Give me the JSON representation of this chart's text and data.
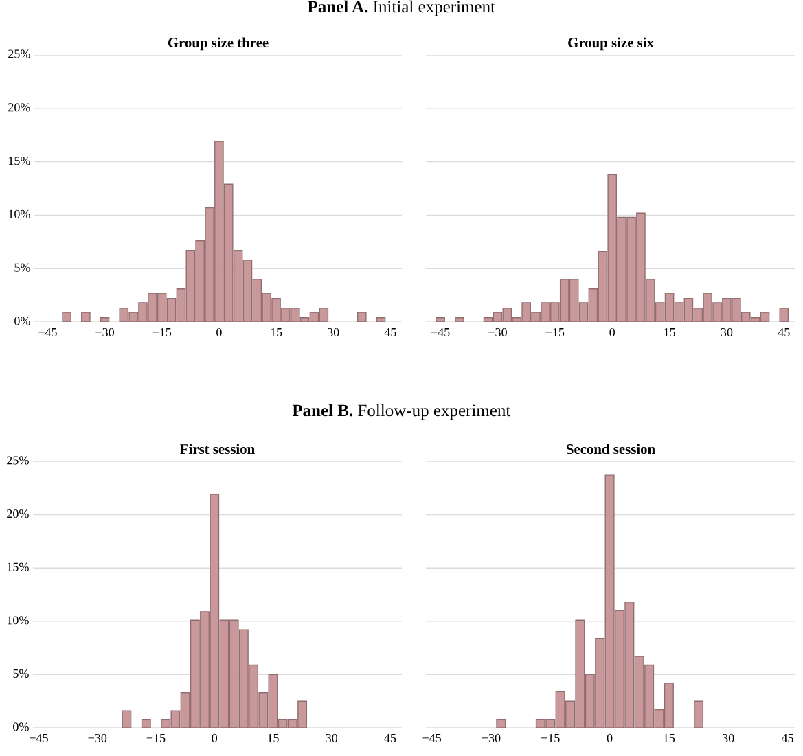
{
  "chart_data": [
    {
      "type": "histogram",
      "title": "Group size three",
      "annotations": [
        "Panel A. Initial experiment"
      ],
      "color": "#c9989b",
      "bins": [
        -41.25,
        -38.75,
        -36.25,
        -33.75,
        -31.25,
        -28.75,
        -26.25,
        -23.75,
        -21.25,
        -18.75,
        -16.25,
        -13.75,
        -11.25,
        -8.75,
        -6.25,
        -3.75,
        -1.25,
        1.25,
        3.75,
        6.25,
        8.75,
        11.25,
        13.75,
        16.25,
        18.75,
        21.25,
        23.75,
        26.25,
        28.75,
        31.25,
        33.75,
        36.25,
        38.75,
        41.25,
        43.75
      ],
      "values": [
        0.9,
        0,
        0.9,
        0,
        0.4,
        0,
        1.3,
        0.9,
        1.8,
        2.7,
        2.7,
        2.2,
        3.1,
        6.7,
        7.6,
        10.7,
        16.9,
        12.9,
        6.7,
        5.8,
        4.0,
        2.7,
        2.2,
        1.3,
        1.3,
        0.4,
        0.9,
        1.3,
        0,
        0,
        0,
        0.9,
        0,
        0.4
      ],
      "xlim": [
        -48.5,
        48
      ],
      "xticks": [
        {
          "value": -45,
          "label": "−45"
        },
        {
          "value": -30,
          "label": "−30"
        },
        {
          "value": -15,
          "label": "−15"
        },
        0,
        15,
        30,
        45
      ],
      "ylim": [
        0,
        25
      ],
      "yticks": [
        {
          "value": 0,
          "label": "0%"
        },
        {
          "value": 5,
          "label": "5%"
        },
        {
          "value": 10,
          "label": "10%"
        },
        {
          "value": 15,
          "label": "15%"
        },
        {
          "value": 20,
          "label": "20%"
        },
        {
          "value": 25,
          "label": "25%"
        }
      ],
      "grid": "y"
    },
    {
      "type": "histogram",
      "title": "Group size six",
      "color": "#c9989b",
      "bins": [
        -46.25,
        -43.75,
        -41.25,
        -38.75,
        -36.25,
        -33.75,
        -31.25,
        -28.75,
        -26.25,
        -23.75,
        -21.25,
        -18.75,
        -16.25,
        -13.75,
        -11.25,
        -8.75,
        -6.25,
        -3.75,
        -1.25,
        1.25,
        3.75,
        6.25,
        8.75,
        11.25,
        13.75,
        16.25,
        18.75,
        21.25,
        23.75,
        26.25,
        28.75,
        31.25,
        33.75,
        36.25,
        38.75,
        41.25,
        43.75,
        46.25
      ],
      "values": [
        0.4,
        0,
        0.4,
        0,
        0,
        0.4,
        0.9,
        1.3,
        0.4,
        1.8,
        0.9,
        1.8,
        1.8,
        4.0,
        4.0,
        1.8,
        3.1,
        6.6,
        13.8,
        9.8,
        9.8,
        10.2,
        4.0,
        1.8,
        2.7,
        1.8,
        2.2,
        1.3,
        2.7,
        1.8,
        2.2,
        2.2,
        0.9,
        0.4,
        0.9,
        0,
        1.3
      ],
      "xlim": [
        -48.8,
        48
      ],
      "xticks": [
        {
          "value": -45,
          "label": "−45"
        },
        {
          "value": -30,
          "label": "−30"
        },
        {
          "value": -15,
          "label": "−15"
        },
        0,
        15,
        30,
        45
      ],
      "ylim": [
        0,
        25
      ],
      "yticks": [
        {
          "value": 0,
          "label": null
        },
        {
          "value": 5,
          "label": null
        },
        {
          "value": 10,
          "label": null
        },
        {
          "value": 15,
          "label": null
        },
        {
          "value": 20,
          "label": null
        },
        {
          "value": 25,
          "label": null
        }
      ],
      "grid": "y",
      "tick_labels": "x"
    },
    {
      "type": "histogram",
      "title": "First session",
      "annotations": [
        "Panel B. Follow-up experiment"
      ],
      "color": "#c9989b",
      "bins": [
        -23.75,
        -21.25,
        -18.75,
        -16.25,
        -13.75,
        -11.25,
        -8.75,
        -6.25,
        -3.75,
        -1.25,
        1.25,
        3.75,
        6.25,
        8.75,
        11.25,
        13.75,
        16.25,
        18.75,
        21.25,
        23.75
      ],
      "values": [
        1.6,
        0,
        0.8,
        0,
        0.8,
        1.6,
        3.3,
        10.1,
        10.9,
        21.9,
        10.1,
        10.1,
        9.2,
        5.9,
        3.3,
        5.0,
        0.8,
        0.8,
        2.5
      ],
      "xlim": [
        -46.5,
        48
      ],
      "xticks": [
        {
          "value": -45,
          "label": "−45"
        },
        {
          "value": -30,
          "label": "−30"
        },
        {
          "value": -15,
          "label": "−15"
        },
        0,
        15,
        30,
        45
      ],
      "ylim": [
        0,
        25
      ],
      "yticks": [
        {
          "value": 0,
          "label": "0%"
        },
        {
          "value": 5,
          "label": "5%"
        },
        {
          "value": 10,
          "label": "10%"
        },
        {
          "value": 15,
          "label": "15%"
        },
        {
          "value": 20,
          "label": "20%"
        },
        {
          "value": 25,
          "label": "25%"
        }
      ],
      "grid": "y"
    },
    {
      "type": "histogram",
      "title": "Second session",
      "color": "#c9989b",
      "bins": [
        -28.75,
        -26.25,
        -23.75,
        -21.25,
        -18.75,
        -16.25,
        -13.75,
        -11.25,
        -8.75,
        -6.25,
        -3.75,
        -1.25,
        1.25,
        3.75,
        6.25,
        8.75,
        11.25,
        13.75,
        16.25,
        18.75,
        21.25,
        23.75
      ],
      "values": [
        0.8,
        0,
        0,
        0,
        0.8,
        0.8,
        3.4,
        2.5,
        10.1,
        5.0,
        8.4,
        23.7,
        11.0,
        11.8,
        6.7,
        5.9,
        1.7,
        4.2,
        0,
        0,
        2.5
      ],
      "xlim": [
        -46.5,
        47
      ],
      "xticks": [
        {
          "value": -45,
          "label": "−45"
        },
        {
          "value": -30,
          "label": "−30"
        },
        {
          "value": -15,
          "label": "−15"
        },
        0,
        15,
        30,
        45
      ],
      "ylim": [
        0,
        25
      ],
      "yticks": [
        {
          "value": 0,
          "label": null
        },
        {
          "value": 5,
          "label": null
        },
        {
          "value": 10,
          "label": null
        },
        {
          "value": 15,
          "label": null
        },
        {
          "value": 20,
          "label": null
        },
        {
          "value": 25,
          "label": null
        }
      ],
      "grid": "y",
      "tick_labels": "x"
    }
  ]
}
